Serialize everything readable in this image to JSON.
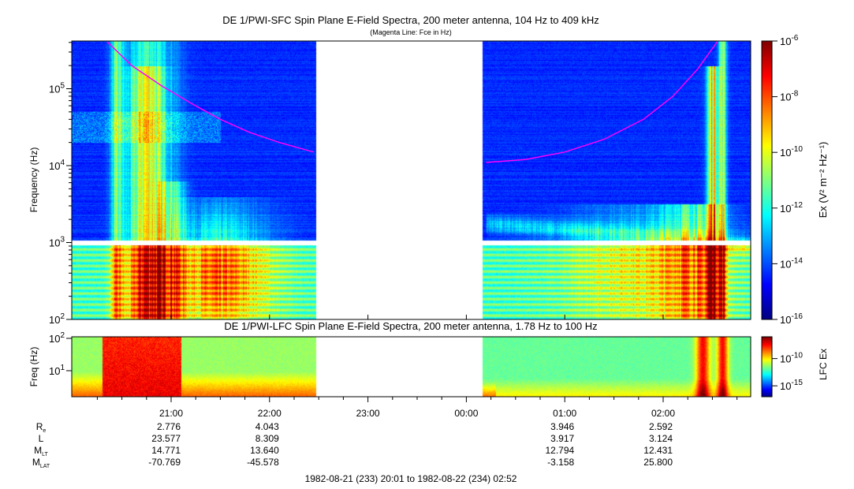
{
  "chart_data": {
    "type": "heatmap",
    "top_panel": {
      "title": "DE 1/PWI-SFC  Spin Plane E-Field Spectra, 200 meter antenna, 104 Hz to 409 kHz",
      "subtitle": "(Magenta Line: Fce in Hz)",
      "ylabel": "Frequency (Hz)",
      "yscale": "log",
      "ylim": [
        100,
        409000
      ],
      "yticks": [
        {
          "v": 100,
          "b": "10",
          "e": "2"
        },
        {
          "v": 1000,
          "b": "10",
          "e": "3"
        },
        {
          "v": 10000,
          "b": "10",
          "e": "4"
        },
        {
          "v": 100000,
          "b": "10",
          "e": "5"
        }
      ],
      "colorbar": {
        "label": "Ex (V² m⁻² Hz⁻¹)",
        "label_parts": [
          "Ex (V",
          "2",
          " m",
          "-2",
          " Hz",
          "-1",
          ")"
        ],
        "range_log10": [
          -16,
          -6
        ],
        "ticks": [
          {
            "v": -6,
            "b": "10",
            "e": "-6"
          },
          {
            "v": -8,
            "b": "10",
            "e": "-8"
          },
          {
            "v": -10,
            "b": "10",
            "e": "-10"
          },
          {
            "v": -12,
            "b": "10",
            "e": "-12"
          },
          {
            "v": -14,
            "b": "10",
            "e": "-14"
          },
          {
            "v": -16,
            "b": "10",
            "e": "-16"
          }
        ]
      },
      "fce_line": {
        "color": "#ff00ff",
        "segments": [
          [
            [
              20.35,
              409000
            ],
            [
              20.6,
              200000
            ],
            [
              20.9,
              110000
            ],
            [
              21.2,
              65000
            ],
            [
              21.5,
              40000
            ],
            [
              21.8,
              27000
            ],
            [
              22.1,
              20000
            ],
            [
              22.45,
              15000
            ]
          ],
          [
            [
              24.2,
              11000
            ],
            [
              24.6,
              12000
            ],
            [
              25.0,
              15000
            ],
            [
              25.4,
              22000
            ],
            [
              25.8,
              40000
            ],
            [
              26.1,
              80000
            ],
            [
              26.35,
              180000
            ],
            [
              26.55,
              409000
            ]
          ]
        ]
      }
    },
    "bottom_panel": {
      "title": "DE 1/PWI-LFC  Spin Plane E-Field Spectra, 200 meter antenna, 1.78 Hz to 100 Hz",
      "ylabel": "Freq (Hz)",
      "yscale": "log",
      "ylim": [
        1.78,
        100
      ],
      "yticks": [
        {
          "v": 10,
          "b": "10",
          "e": "1"
        },
        {
          "v": 100,
          "b": "10",
          "e": "2"
        }
      ],
      "colorbar": {
        "label": "LFC Ex",
        "range_log10": [
          -17,
          -6
        ],
        "ticks": [
          {
            "v": -10,
            "b": "10",
            "e": "-10"
          },
          {
            "v": -15,
            "b": "10",
            "e": "-15"
          }
        ]
      }
    },
    "x_axis": {
      "time_range_hours": [
        20.0167,
        26.8667
      ],
      "data_gap_hours": [
        22.47,
        24.16
      ],
      "ticks": [
        {
          "h": 21,
          "label": "21:00"
        },
        {
          "h": 22,
          "label": "22:00"
        },
        {
          "h": 23,
          "label": "23:00"
        },
        {
          "h": 24,
          "label": "00:00"
        },
        {
          "h": 25,
          "label": "01:00"
        },
        {
          "h": 26,
          "label": "02:00"
        }
      ]
    },
    "ephemeris": {
      "rows": [
        {
          "label": "R",
          "sub": "e",
          "values": [
            "2.776",
            "4.043",
            "",
            "",
            "3.946",
            "2.592"
          ]
        },
        {
          "label": "L",
          "sub": "",
          "values": [
            "23.577",
            "8.309",
            "",
            "",
            "3.917",
            "3.124"
          ]
        },
        {
          "label": "M",
          "sub": "LT",
          "values": [
            "14.771",
            "13.640",
            "",
            "",
            "12.794",
            "12.431"
          ]
        },
        {
          "label": "M",
          "sub": "LAT",
          "values": [
            "-70.769",
            "-45.578",
            "",
            "",
            "-3.158",
            "25.800"
          ]
        }
      ]
    },
    "time_span": "1982-08-21 (233) 20:01 to 1982-08-22 (234) 02:52"
  }
}
